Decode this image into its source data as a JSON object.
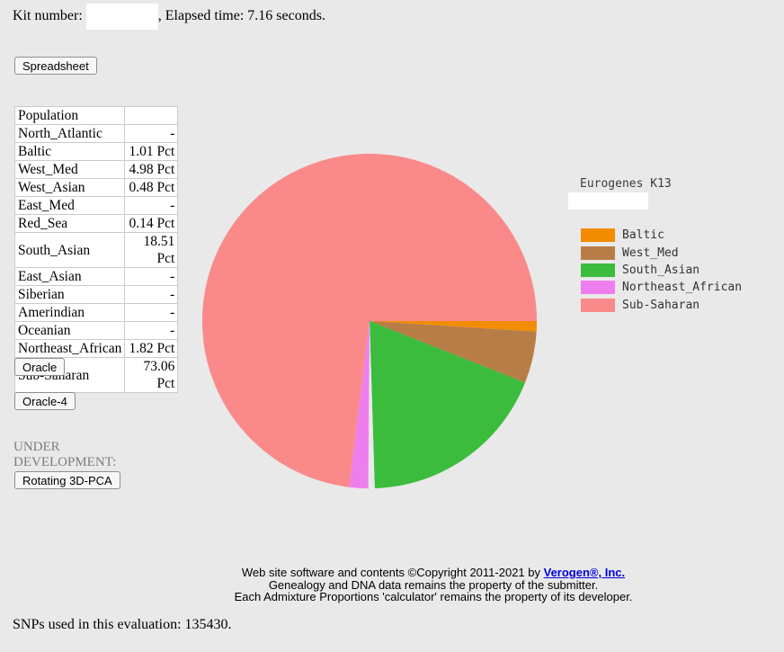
{
  "header": {
    "kit_label": "Kit number:",
    "elapsed_text": ", Elapsed time: 7.16 seconds."
  },
  "buttons": {
    "spreadsheet": "Spreadsheet",
    "oracle": "Oracle",
    "oracle4": "Oracle-4",
    "rotating_pca": "Rotating 3D-PCA"
  },
  "under_development": "UNDER DEVELOPMENT:",
  "results_table": {
    "header_label": "Population",
    "rows": [
      {
        "population": "North_Atlantic",
        "value": "-"
      },
      {
        "population": "Baltic",
        "value": "1.01 Pct"
      },
      {
        "population": "West_Med",
        "value": "4.98 Pct"
      },
      {
        "population": "West_Asian",
        "value": "0.48 Pct"
      },
      {
        "population": "East_Med",
        "value": "-"
      },
      {
        "population": "Red_Sea",
        "value": "0.14 Pct"
      },
      {
        "population": "South_Asian",
        "value": "18.51 Pct"
      },
      {
        "population": "East_Asian",
        "value": "-"
      },
      {
        "population": "Siberian",
        "value": "-"
      },
      {
        "population": "Amerindian",
        "value": "-"
      },
      {
        "population": "Oceanian",
        "value": "-"
      },
      {
        "population": "Northeast_African",
        "value": "1.82 Pct"
      },
      {
        "population": "Sub-Saharan",
        "value": "73.06 Pct"
      }
    ]
  },
  "chart_data": {
    "type": "pie",
    "title": "Eurogenes K13",
    "legend_position": "right",
    "start_angle_deg": 0,
    "direction": "clockwise",
    "background": "#E9E9E9",
    "slices": [
      {
        "label": "Baltic",
        "value": 1.01,
        "color": "#F28C00",
        "in_legend": true
      },
      {
        "label": "West_Med",
        "value": 4.98,
        "color": "#B87D46",
        "in_legend": true
      },
      {
        "label": "South_Asian",
        "value": 18.51,
        "color": "#3CBC3C",
        "in_legend": true
      },
      {
        "label": "unlabeled-gap",
        "value": 0.62,
        "color": "#E9E9E9",
        "in_legend": false
      },
      {
        "label": "Northeast_African",
        "value": 1.82,
        "color": "#EE7EEE",
        "in_legend": true
      },
      {
        "label": "Sub-Saharan",
        "value": 73.06,
        "color": "#FA8A8A",
        "in_legend": true
      }
    ]
  },
  "footer": {
    "line1_prefix": "Web site software and contents ©Copyright 2011-2021 by ",
    "link_text": "Verogen®, Inc.",
    "line2": "Genealogy and DNA data remains the property of the submitter.",
    "line3": "Each Admixture Proportions 'calculator' remains the property of its developer."
  },
  "snps_text": "SNPs used in this evaluation: 135430."
}
